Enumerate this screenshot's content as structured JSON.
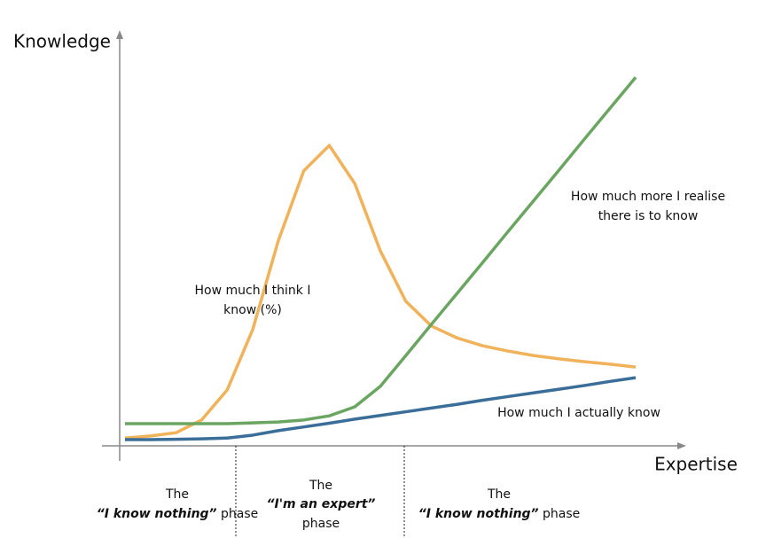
{
  "chart_data": {
    "type": "line",
    "y_label": "Knowledge",
    "x_label": "Expertise",
    "x": [
      0,
      1,
      2,
      3,
      4,
      5,
      6,
      7,
      8,
      9,
      10,
      11,
      12,
      13,
      14,
      15,
      16,
      17,
      18,
      19,
      20
    ],
    "xlim": [
      0,
      20
    ],
    "ylim": [
      0,
      100
    ],
    "series": [
      {
        "name": "How much I think I know (%)",
        "color": "#f0b25a",
        "values": [
          1.9,
          2.4,
          3.2,
          6.3,
          13.6,
          28.3,
          49.9,
          67,
          73.2,
          63.9,
          47.5,
          35.2,
          29.2,
          26.3,
          24.4,
          23.1,
          22,
          21.2,
          20.5,
          19.9,
          19.2
        ]
      },
      {
        "name": "How much more I realise there is to know",
        "color": "#6aa561",
        "values": [
          5.4,
          5.4,
          5.4,
          5.4,
          5.4,
          5.6,
          5.8,
          6.3,
          7.3,
          9.5,
          14.5,
          22.0,
          29.6,
          37.1,
          44.6,
          52.2,
          59.7,
          67.2,
          74.8,
          82.3,
          89.8
        ]
      },
      {
        "name": "How much I actually know",
        "color": "#3a6e99",
        "values": [
          1.5,
          1.5,
          1.6,
          1.7,
          1.9,
          2.6,
          3.7,
          4.6,
          5.5,
          6.5,
          7.4,
          8.3,
          9.2,
          10.1,
          11.1,
          12.0,
          12.9,
          13.8,
          14.7,
          15.7,
          16.6
        ]
      }
    ],
    "annotations": [
      {
        "lines": [
          "How much I think I",
          "know (%)"
        ]
      },
      {
        "lines": [
          "How much more I realise",
          "there is to know"
        ]
      },
      {
        "lines": [
          "How much I actually know"
        ]
      }
    ],
    "phases": [
      {
        "top": "The",
        "emphasis": "“I know nothing”",
        "rest": " phase"
      },
      {
        "top": "The",
        "emphasis": "“I'm an expert”",
        "rest": "phase"
      },
      {
        "top": "The",
        "emphasis": "“I know nothing”",
        "rest": " phase"
      }
    ]
  }
}
